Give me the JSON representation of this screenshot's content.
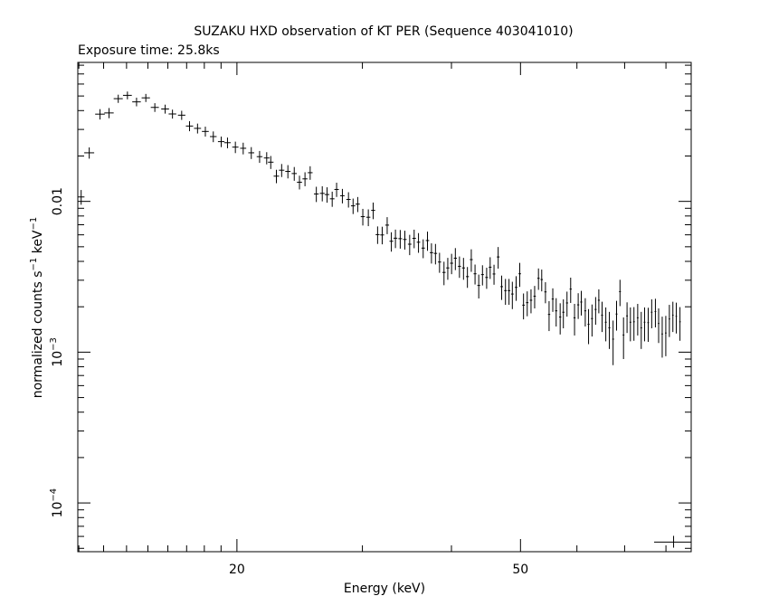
{
  "chart_data": {
    "type": "scatter",
    "title": "SUZAKU HXD observation of KT PER (Sequence 403041010)",
    "subtitle": "Exposure time: 25.8ks",
    "xlabel": "Energy (keV)",
    "ylabel_parts": [
      "normalized counts s",
      "−1",
      " keV",
      "−1"
    ],
    "x_scale": "log",
    "y_scale": "log",
    "xlim": [
      11.96,
      86.8
    ],
    "ylim": [
      4.75e-05,
      0.0835
    ],
    "x_ticks": [
      {
        "value": 20,
        "label": "20"
      },
      {
        "value": 50,
        "label": "50"
      }
    ],
    "y_ticks": [
      {
        "value": 0.01,
        "label": "0.01",
        "exp": ""
      },
      {
        "value": 0.001,
        "label": "10",
        "exp": "−3"
      },
      {
        "value": 0.0001,
        "label": "10",
        "exp": "−4"
      }
    ],
    "grid": false,
    "legend": "none",
    "series": [
      {
        "points": [
          [
            12.09,
            0.0107,
            0.13,
            0.0012
          ],
          [
            12.41,
            0.021,
            0.2,
            0.0018
          ],
          [
            12.85,
            0.0379,
            0.2,
            0.003
          ],
          [
            13.23,
            0.0386,
            0.2,
            0.003
          ],
          [
            13.63,
            0.048,
            0.2,
            0.003
          ],
          [
            14.04,
            0.0505,
            0.2,
            0.003
          ],
          [
            14.46,
            0.0457,
            0.2,
            0.003
          ],
          [
            14.9,
            0.0486,
            0.2,
            0.003
          ],
          [
            15.34,
            0.042,
            0.2,
            0.0028
          ],
          [
            15.86,
            0.041,
            0.2,
            0.0028
          ],
          [
            16.24,
            0.038,
            0.2,
            0.0026
          ],
          [
            16.73,
            0.0373,
            0.2,
            0.0026
          ],
          [
            17.16,
            0.0316,
            0.2,
            0.0024
          ],
          [
            17.61,
            0.0305,
            0.2,
            0.0023
          ],
          [
            18.06,
            0.0291,
            0.2,
            0.0022
          ],
          [
            18.53,
            0.0269,
            0.2,
            0.0022
          ],
          [
            19.01,
            0.0249,
            0.2,
            0.002
          ],
          [
            19.4,
            0.0245,
            0.2,
            0.002
          ],
          [
            19.9,
            0.0229,
            0.2,
            0.002
          ],
          [
            20.41,
            0.0225,
            0.2,
            0.002
          ],
          [
            20.95,
            0.021,
            0.2,
            0.0019
          ],
          [
            21.52,
            0.0198,
            0.2,
            0.0018
          ],
          [
            22.02,
            0.0194,
            0.2,
            0.0018
          ],
          [
            22.31,
            0.0182,
            0.2,
            0.0018
          ],
          [
            22.72,
            0.0147,
            0.2,
            0.0015
          ],
          [
            23.11,
            0.0161,
            0.2,
            0.0016
          ],
          [
            23.58,
            0.0158,
            0.2,
            0.0016
          ],
          [
            24.07,
            0.0153,
            0.2,
            0.0016
          ],
          [
            24.48,
            0.0134,
            0.2,
            0.0014
          ],
          [
            24.92,
            0.0141,
            0.2,
            0.0015
          ],
          [
            25.34,
            0.0155,
            0.2,
            0.0016
          ],
          [
            25.85,
            0.0112,
            0.2,
            0.0013
          ],
          [
            26.35,
            0.0113,
            0.2,
            0.0013
          ],
          [
            26.76,
            0.0111,
            0.2,
            0.0013
          ],
          [
            27.21,
            0.0104,
            0.2,
            0.0012
          ],
          [
            27.6,
            0.012,
            0.2,
            0.0013
          ],
          [
            28.12,
            0.0109,
            0.2,
            0.0012
          ],
          [
            28.68,
            0.0103,
            0.2,
            0.0012
          ],
          [
            29.11,
            0.00934,
            0.2,
            0.0011
          ],
          [
            29.55,
            0.00959,
            0.2,
            0.0011
          ],
          [
            30.04,
            0.00792,
            0.2,
            0.001
          ],
          [
            30.58,
            0.00785,
            0.2,
            0.001
          ],
          [
            31.06,
            0.00872,
            0.2,
            0.0011
          ],
          [
            31.51,
            0.00602,
            0.2,
            0.0008
          ],
          [
            31.98,
            0.00599,
            0.2,
            0.0008
          ],
          [
            32.5,
            0.00696,
            0.2,
            0.0009
          ],
          [
            32.94,
            0.00544,
            0.2,
            0.0008
          ],
          [
            33.38,
            0.0057,
            0.2,
            0.0008
          ],
          [
            33.9,
            0.00566,
            0.2,
            0.0008
          ],
          [
            34.41,
            0.00559,
            0.2,
            0.0008
          ],
          [
            34.95,
            0.0052,
            0.2,
            0.0008
          ],
          [
            35.46,
            0.00569,
            0.2,
            0.0008
          ],
          [
            35.96,
            0.00536,
            0.2,
            0.0008
          ],
          [
            36.51,
            0.0049,
            0.2,
            0.0007
          ],
          [
            37.02,
            0.0055,
            0.2,
            0.0008
          ],
          [
            37.5,
            0.00457,
            0.2,
            0.0007
          ],
          [
            37.99,
            0.00452,
            0.2,
            0.0007
          ],
          [
            38.49,
            0.00396,
            0.2,
            0.0006
          ],
          [
            39.05,
            0.00338,
            0.2,
            0.0006
          ],
          [
            39.53,
            0.00362,
            0.2,
            0.0006
          ],
          [
            40.02,
            0.00389,
            0.2,
            0.0006
          ],
          [
            40.51,
            0.0042,
            0.2,
            0.0007
          ],
          [
            41.05,
            0.00371,
            0.2,
            0.0006
          ],
          [
            41.59,
            0.00362,
            0.2,
            0.0006
          ],
          [
            42.12,
            0.00317,
            0.2,
            0.0005
          ],
          [
            42.65,
            0.00411,
            0.2,
            0.0007
          ],
          [
            43.17,
            0.00331,
            0.2,
            0.0005
          ],
          [
            43.69,
            0.00277,
            0.2,
            0.0005
          ],
          [
            44.22,
            0.00327,
            0.2,
            0.0005
          ],
          [
            44.82,
            0.00313,
            0.2,
            0.0005
          ],
          [
            45.33,
            0.00366,
            0.2,
            0.0006
          ],
          [
            45.9,
            0.0033,
            0.2,
            0.0005
          ],
          [
            46.52,
            0.00428,
            0.2,
            0.0007
          ],
          [
            47.05,
            0.00272,
            0.2,
            0.0005
          ],
          [
            47.63,
            0.00256,
            0.2,
            0.0005
          ],
          [
            48.18,
            0.00256,
            0.2,
            0.0005
          ],
          [
            48.7,
            0.00243,
            0.2,
            0.0005
          ],
          [
            49.3,
            0.00269,
            0.2,
            0.0005
          ],
          [
            49.88,
            0.00331,
            0.2,
            0.0006
          ],
          [
            50.49,
            0.00205,
            0.2,
            0.0004
          ],
          [
            51.1,
            0.00213,
            0.2,
            0.0004
          ],
          [
            51.73,
            0.00221,
            0.2,
            0.0004
          ],
          [
            52.34,
            0.00235,
            0.2,
            0.0004
          ],
          [
            52.99,
            0.00309,
            0.2,
            0.0005
          ],
          [
            53.55,
            0.00303,
            0.2,
            0.0005
          ],
          [
            54.2,
            0.00251,
            0.2,
            0.0004
          ],
          [
            54.84,
            0.00178,
            0.2,
            0.0004
          ],
          [
            55.5,
            0.00225,
            0.2,
            0.0004
          ],
          [
            56.11,
            0.00188,
            0.2,
            0.0004
          ],
          [
            56.84,
            0.00171,
            0.2,
            0.0004
          ],
          [
            57.43,
            0.00184,
            0.2,
            0.0004
          ],
          [
            58.11,
            0.00212,
            0.2,
            0.0004
          ],
          [
            58.8,
            0.00262,
            0.2,
            0.0005
          ],
          [
            59.54,
            0.00169,
            0.2,
            0.0004
          ],
          [
            60.25,
            0.00206,
            0.2,
            0.0004
          ],
          [
            60.85,
            0.00215,
            0.2,
            0.0004
          ],
          [
            61.64,
            0.00188,
            0.2,
            0.0004
          ],
          [
            62.3,
            0.00153,
            0.2,
            0.0004
          ],
          [
            63.0,
            0.00167,
            0.2,
            0.0004
          ],
          [
            63.74,
            0.00192,
            0.2,
            0.0004
          ],
          [
            64.4,
            0.00221,
            0.2,
            0.0004
          ],
          [
            65.08,
            0.00176,
            0.2,
            0.0004
          ],
          [
            65.87,
            0.00158,
            0.2,
            0.0004
          ],
          [
            66.63,
            0.00145,
            0.2,
            0.0004
          ],
          [
            67.44,
            0.00122,
            0.2,
            0.0004
          ],
          [
            68.2,
            0.00179,
            0.2,
            0.0004
          ],
          [
            68.96,
            0.00252,
            0.2,
            0.0005
          ],
          [
            69.75,
            0.0013,
            0.2,
            0.0004
          ],
          [
            70.55,
            0.00174,
            0.2,
            0.0004
          ],
          [
            71.32,
            0.00158,
            0.2,
            0.0004
          ],
          [
            72.14,
            0.00159,
            0.2,
            0.0004
          ],
          [
            73.02,
            0.00169,
            0.2,
            0.0004
          ],
          [
            73.86,
            0.00145,
            0.2,
            0.0004
          ],
          [
            74.66,
            0.00158,
            0.2,
            0.0004
          ],
          [
            75.54,
            0.00157,
            0.2,
            0.0004
          ],
          [
            76.4,
            0.00184,
            0.2,
            0.0004
          ],
          [
            77.32,
            0.00186,
            0.2,
            0.0004
          ],
          [
            78.13,
            0.00155,
            0.2,
            0.0004
          ],
          [
            79.04,
            0.00132,
            0.2,
            0.0004
          ],
          [
            79.96,
            0.00134,
            0.2,
            0.0004
          ],
          [
            80.89,
            0.00166,
            0.2,
            0.0004
          ],
          [
            81.81,
            0.00176,
            0.2,
            0.0004
          ],
          [
            82.72,
            0.00173,
            0.2,
            0.0004
          ],
          [
            83.71,
            0.00159,
            0.2,
            0.0004
          ]
        ]
      }
    ],
    "reference_mark": {
      "x": 82.0,
      "y": 5.5e-05,
      "x_low": 77.0,
      "x_high": 86.8,
      "y_low": 5.05e-05,
      "y_high": 6.05e-05
    }
  }
}
